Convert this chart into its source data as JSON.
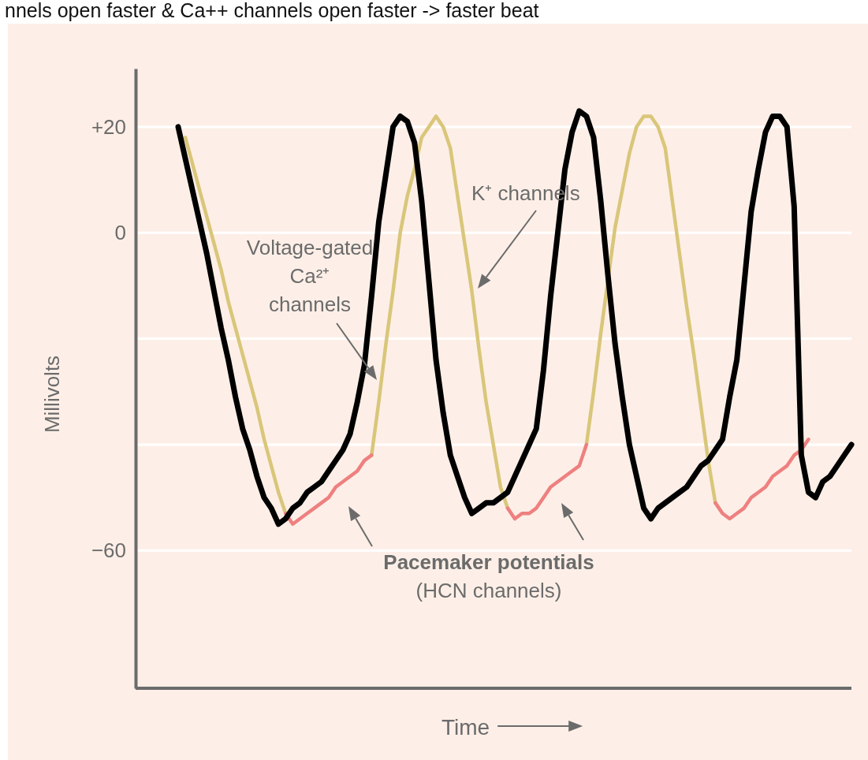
{
  "chart_data": {
    "type": "line",
    "title": "nnels open faster & Ca++ channels open faster -> faster beat",
    "xlabel": "Time",
    "ylabel": "Millivolts",
    "categories": [
      null,
      null,
      null,
      null,
      null,
      null,
      null,
      null,
      null,
      null,
      null,
      null,
      null,
      null,
      null,
      null,
      null,
      null,
      null,
      null,
      null,
      null,
      null,
      null,
      null,
      null,
      null,
      null,
      null,
      null,
      null,
      null,
      null,
      null,
      null,
      null,
      null,
      null,
      null,
      null,
      null,
      null,
      null,
      null,
      null,
      null,
      null,
      null,
      null,
      null,
      null,
      null,
      null,
      null,
      null,
      null,
      null,
      null,
      null,
      null,
      null,
      null,
      null,
      null,
      null,
      null,
      null,
      null,
      null,
      null,
      null,
      null,
      null,
      null,
      null,
      null,
      null,
      null,
      null,
      null,
      null,
      null,
      null,
      null,
      null,
      null,
      null,
      null,
      null,
      null,
      null,
      null,
      null,
      null,
      null
    ],
    "ylim": [
      -86,
      31
    ],
    "yticks": [
      {
        "value": 20,
        "label": "+20"
      },
      0,
      {
        "value": -20,
        "label": null
      },
      {
        "value": -40,
        "label": null
      },
      {
        "value": -60,
        "label": "−60"
      }
    ],
    "tick_labels": "y",
    "grid": "y",
    "marker": "none",
    "line_style": "solid",
    "annotations": [
      "Voltage-gated Ca²⁺ channels",
      "K⁺ channels",
      "Pacemaker potentials",
      "(HCN channels)"
    ],
    "series": [
      {
        "color": "#d9c67a",
        "values": [
          null,
          18,
          13,
          8,
          3,
          -2,
          -7,
          -13,
          -18,
          -23,
          -28,
          -33,
          -39,
          -44,
          -49,
          -53,
          null,
          null,
          null,
          null,
          null,
          null,
          null,
          null,
          null,
          null,
          null,
          -42,
          -32,
          -21,
          -11,
          0,
          7,
          12,
          18,
          20,
          22,
          20,
          16,
          7,
          -2,
          -11,
          -22,
          -32,
          -40,
          -48,
          -52,
          null,
          null,
          null,
          null,
          null,
          null,
          null,
          null,
          null,
          null,
          -40,
          -30,
          -19,
          -9,
          1,
          8,
          15,
          20,
          22,
          22,
          20,
          16,
          6,
          -4,
          -14,
          -23,
          -33,
          -43,
          -51,
          null,
          null,
          null,
          null,
          null,
          null,
          null,
          null,
          null,
          null,
          null,
          null,
          null,
          null,
          null,
          null,
          null,
          null,
          null
        ]
      },
      {
        "color": "#ee8080",
        "values": [
          null,
          null,
          null,
          null,
          null,
          null,
          null,
          null,
          null,
          null,
          null,
          null,
          null,
          null,
          null,
          -53,
          -55,
          -54,
          -53,
          -52,
          -51,
          -50,
          -48,
          -47,
          -46,
          -45,
          -43,
          -42,
          null,
          null,
          null,
          null,
          null,
          null,
          null,
          null,
          null,
          null,
          null,
          null,
          null,
          null,
          null,
          null,
          null,
          null,
          -52,
          -54,
          -53,
          -53,
          -52,
          -50,
          -48,
          -47,
          -46,
          -45,
          -44,
          -40,
          null,
          null,
          null,
          null,
          null,
          null,
          null,
          null,
          null,
          null,
          null,
          null,
          null,
          null,
          null,
          null,
          null,
          -51,
          -53,
          -54,
          -53,
          -52,
          -50,
          -49,
          -48,
          -46,
          -45,
          -44,
          -42,
          -41,
          -39,
          null,
          null,
          null,
          null,
          null,
          null
        ]
      },
      {
        "color": "#000000",
        "values": [
          20,
          14,
          8,
          2,
          -4,
          -11,
          -18,
          -24,
          -31,
          -37,
          -41,
          -46,
          -50,
          -52,
          -55,
          -54,
          -52,
          -51,
          -49,
          -48,
          -47,
          -45,
          -43,
          -41,
          -38,
          -32,
          -25,
          -12,
          2,
          11,
          20,
          22,
          21,
          17,
          6,
          -9,
          -24,
          -34,
          -42,
          -46,
          -50,
          -53,
          -52,
          -51,
          -51,
          -50,
          -49,
          -46,
          -43,
          -40,
          -37,
          -26,
          -12,
          0,
          12,
          19,
          23,
          22,
          18,
          6,
          -8,
          -21,
          -31,
          -40,
          -46,
          -52,
          -54,
          -52,
          -51,
          -50,
          -49,
          -48,
          -46,
          -44,
          -43,
          -41,
          -39,
          -31,
          -24,
          -10,
          4,
          12,
          19,
          22,
          22,
          20,
          5,
          -42,
          -49,
          -50,
          -47,
          -46,
          -44,
          -42,
          -40
        ]
      }
    ]
  }
}
